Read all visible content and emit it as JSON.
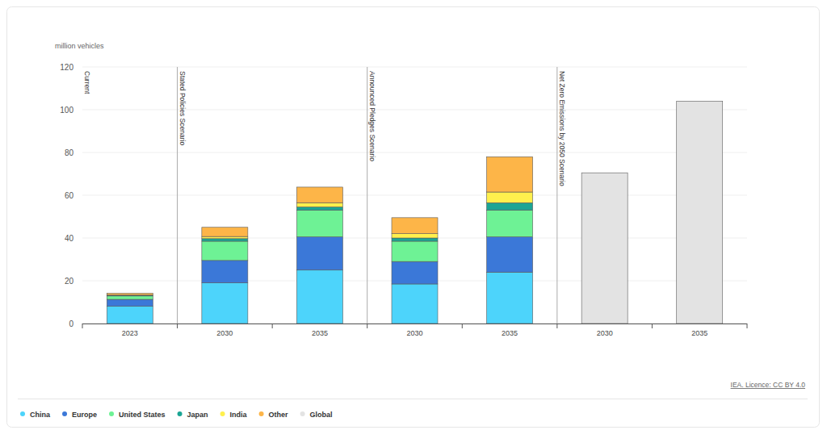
{
  "chart_data": {
    "type": "bar",
    "stacked": true,
    "grid": true,
    "y_label": "million vehicles",
    "source": "IEA. Licence: CC BY 4.0",
    "categories": [
      "2023",
      "2030",
      "2035",
      "2030",
      "2035",
      "2030",
      "2035"
    ],
    "group_labels": [
      "Current",
      "Stated Policies Scenario",
      "Announced Pledges Scenario",
      "Net Zero Emissions by 2050 Scenario"
    ],
    "group_sizes": [
      1,
      2,
      2,
      2
    ],
    "ylim": [
      0,
      120
    ],
    "yticks": [
      0,
      20,
      40,
      60,
      80,
      100,
      120
    ],
    "series": [
      {
        "name": "China",
        "color": "#4dd4fb",
        "values": [
          8.1,
          19,
          25,
          18.5,
          24,
          null,
          null
        ]
      },
      {
        "name": "Europe",
        "color": "#3b78d8",
        "values": [
          3.2,
          10.5,
          15.5,
          10.5,
          16.5,
          null,
          null
        ]
      },
      {
        "name": "United States",
        "color": "#6ef295",
        "values": [
          1.6,
          9,
          12.5,
          9.5,
          12.5,
          null,
          null
        ]
      },
      {
        "name": "Japan",
        "color": "#1ba594",
        "values": [
          0.3,
          1.2,
          1.5,
          1.5,
          3.5,
          null,
          null
        ]
      },
      {
        "name": "India",
        "color": "#fff04d",
        "values": [
          0.1,
          1,
          2,
          2,
          5,
          null,
          null
        ]
      },
      {
        "name": "Other",
        "color": "#fdb548",
        "values": [
          0.8,
          4.3,
          7.3,
          7.5,
          16.5,
          null,
          null
        ]
      },
      {
        "name": "Global",
        "color": "#e3e3e3",
        "values": [
          null,
          null,
          null,
          null,
          null,
          70.5,
          104
        ]
      }
    ]
  }
}
